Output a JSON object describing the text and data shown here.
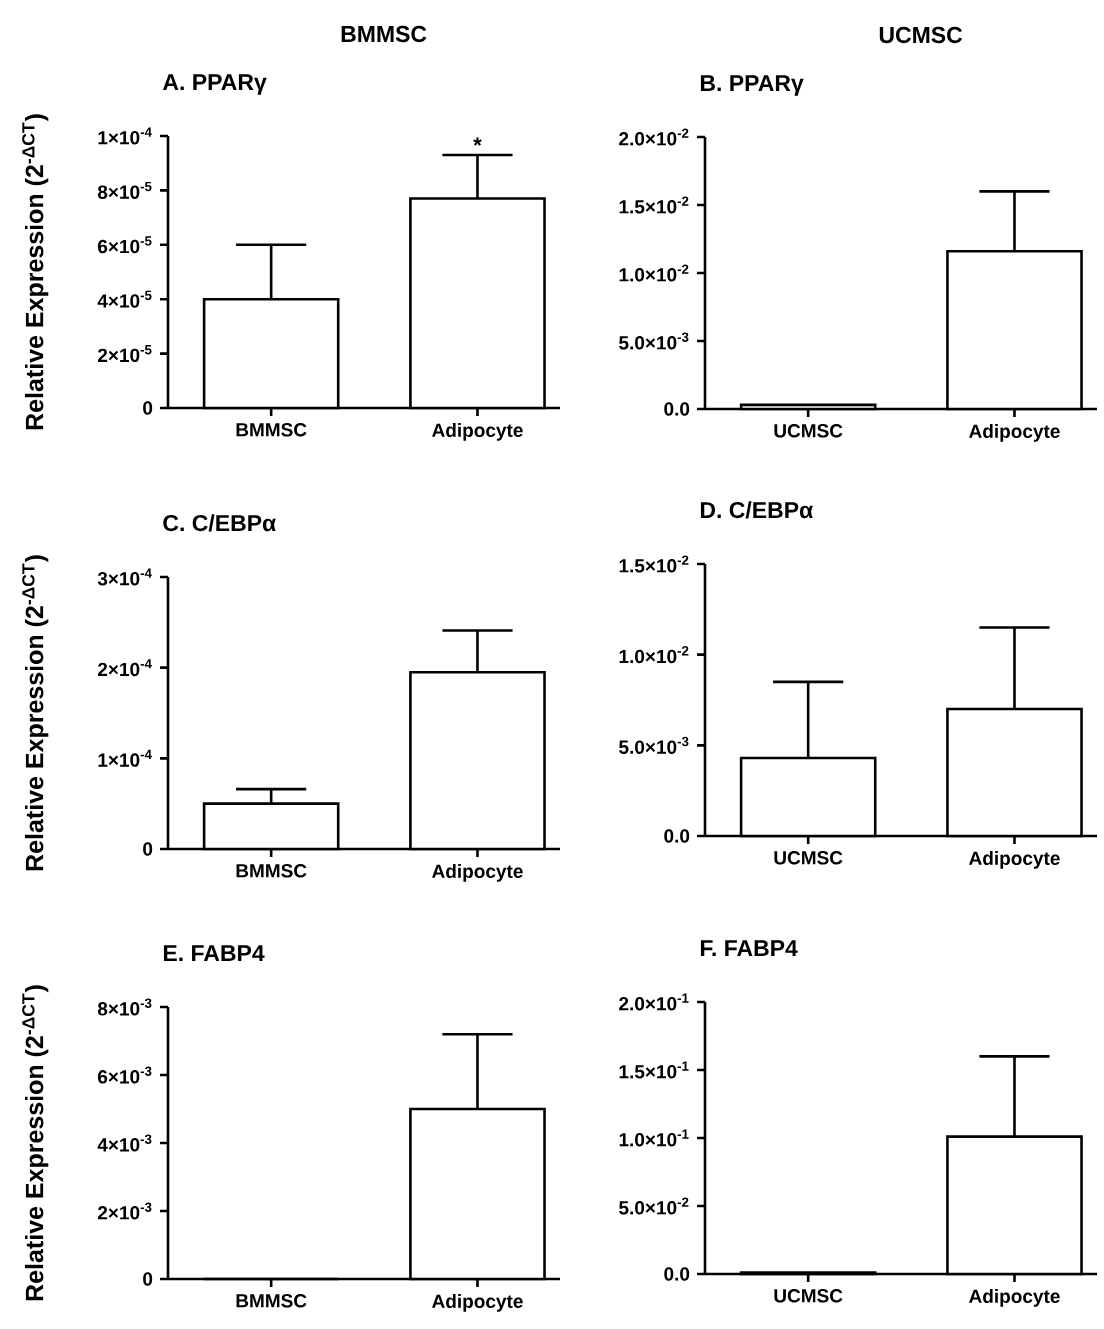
{
  "chart_data": [
    {
      "type": "bar",
      "title": "BMMSC",
      "subtitle": "A. PPARγ",
      "ylabel": "Relative Expression (2$^{-ΔCT}$)",
      "categories": [
        "BMMSC",
        "Adipocyte"
      ],
      "values": [
        4e-05,
        7.7e-05
      ],
      "errors": [
        2e-05,
        1.6e-05
      ],
      "color": "#ffffff",
      "ylim": [
        0,
        0.0001
      ],
      "yticks": [
        {
          "value": 0,
          "label": "0"
        },
        {
          "value": 2e-05,
          "label": "2×10$^{-5}$"
        },
        {
          "value": 4e-05,
          "label": "4×10$^{-5}$"
        },
        {
          "value": 6e-05,
          "label": "6×10$^{-5}$"
        },
        {
          "value": 8e-05,
          "label": "8×10$^{-5}$"
        },
        {
          "value": 0.0001,
          "label": "1×10$^{-4}$"
        }
      ],
      "annotations": [
        {
          "text": "*",
          "x": "Adipocyte",
          "y": 9.3e-05
        }
      ]
    },
    {
      "type": "bar",
      "title": "UCMSC",
      "subtitle": "B. PPARγ",
      "categories": [
        "UCMSC",
        "Adipocyte"
      ],
      "values": [
        0.0003,
        0.0116
      ],
      "errors": [
        null,
        0.0044
      ],
      "color": "#ffffff",
      "ylim": [
        0,
        0.02
      ],
      "yticks": [
        {
          "value": 0,
          "label": "0.0"
        },
        {
          "value": 0.005,
          "label": "5.0×10$^{-3}$"
        },
        {
          "value": 0.01,
          "label": "1.0×10$^{-2}$"
        },
        {
          "value": 0.015,
          "label": "1.5×10$^{-2}$"
        },
        {
          "value": 0.02,
          "label": "2.0×10$^{-2}$"
        }
      ]
    },
    {
      "type": "bar",
      "title": "C. C/EBPα",
      "ylabel": "Relative Expression (2$^{-ΔCT}$)",
      "categories": [
        "BMMSC",
        "Adipocyte"
      ],
      "values": [
        5e-05,
        0.000195
      ],
      "errors": [
        1.6e-05,
        4.6e-05
      ],
      "color": "#ffffff",
      "ylim": [
        0,
        0.0003
      ],
      "yticks": [
        {
          "value": 0,
          "label": "0"
        },
        {
          "value": 0.0001,
          "label": "1×10$^{-4}$"
        },
        {
          "value": 0.0002,
          "label": "2×10$^{-4}$"
        },
        {
          "value": 0.0003,
          "label": "3×10$^{-4}$"
        }
      ]
    },
    {
      "type": "bar",
      "title": "D. C/EBPα",
      "categories": [
        "UCMSC",
        "Adipocyte"
      ],
      "values": [
        0.0043,
        0.007
      ],
      "errors": [
        0.0042,
        0.0045
      ],
      "color": "#ffffff",
      "ylim": [
        0,
        0.015
      ],
      "yticks": [
        {
          "value": 0,
          "label": "0.0"
        },
        {
          "value": 0.005,
          "label": "5.0×10$^{-3}$"
        },
        {
          "value": 0.01,
          "label": "1.0×10$^{-2}$"
        },
        {
          "value": 0.015,
          "label": "1.5×10$^{-2}$"
        }
      ]
    },
    {
      "type": "bar",
      "title": "E. FABP4",
      "ylabel": "Relative Expression (2$^{-ΔCT}$)",
      "categories": [
        "BMMSC",
        "Adipocyte"
      ],
      "values": [
        0,
        0.005
      ],
      "errors": [
        null,
        0.0022
      ],
      "color": "#ffffff",
      "ylim": [
        0,
        0.008
      ],
      "yticks": [
        {
          "value": 0,
          "label": "0"
        },
        {
          "value": 0.002,
          "label": "2×10$^{-3}$"
        },
        {
          "value": 0.004,
          "label": "4×10$^{-3}$"
        },
        {
          "value": 0.006,
          "label": "6×10$^{-3}$"
        },
        {
          "value": 0.008,
          "label": "8×10$^{-3}$"
        }
      ]
    },
    {
      "type": "bar",
      "title": "F. FABP4",
      "categories": [
        "UCMSC",
        "Adipocyte"
      ],
      "values": [
        0.001,
        0.101
      ],
      "errors": [
        null,
        0.059
      ],
      "color": "#ffffff",
      "ylim": [
        0,
        0.2
      ],
      "yticks": [
        {
          "value": 0,
          "label": "0.0"
        },
        {
          "value": 0.05,
          "label": "5.0×10$^{-2}$"
        },
        {
          "value": 0.1,
          "label": "1.0×10$^{-1}$"
        },
        {
          "value": 0.15,
          "label": "1.5×10$^{-1}$"
        },
        {
          "value": 0.2,
          "label": "2.0×10$^{-1}$"
        }
      ]
    }
  ]
}
